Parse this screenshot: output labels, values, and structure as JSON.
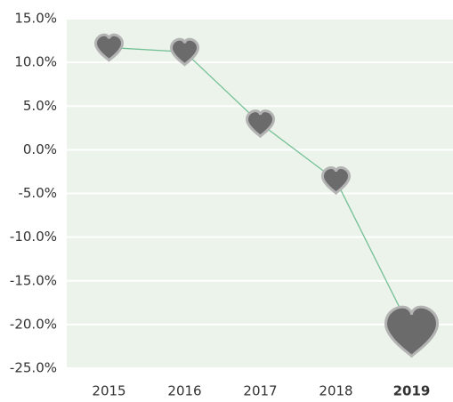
{
  "chart_data": {
    "type": "line",
    "categories": [
      "2015",
      "2016",
      "2017",
      "2018",
      "2019"
    ],
    "values": [
      11.7,
      11.2,
      3.0,
      -3.5,
      -20.8
    ],
    "ylim": [
      -25,
      15
    ],
    "yticks": [
      {
        "value": -25,
        "label": "-25.0%"
      },
      {
        "value": -20,
        "label": "-20.0%"
      },
      {
        "value": -15,
        "label": "-15.0%"
      },
      {
        "value": -10,
        "label": "-10.0%"
      },
      {
        "value": -5,
        "label": "-5.0%"
      },
      {
        "value": 0,
        "label": "0.0%"
      },
      {
        "value": 5,
        "label": "5.0%"
      },
      {
        "value": 10,
        "label": "10.0%"
      },
      {
        "value": 15,
        "label": "15.0%"
      }
    ],
    "grid": true,
    "line_color": "#74c095",
    "marker_color": "#6b6b6b",
    "highlight_index": 4
  }
}
